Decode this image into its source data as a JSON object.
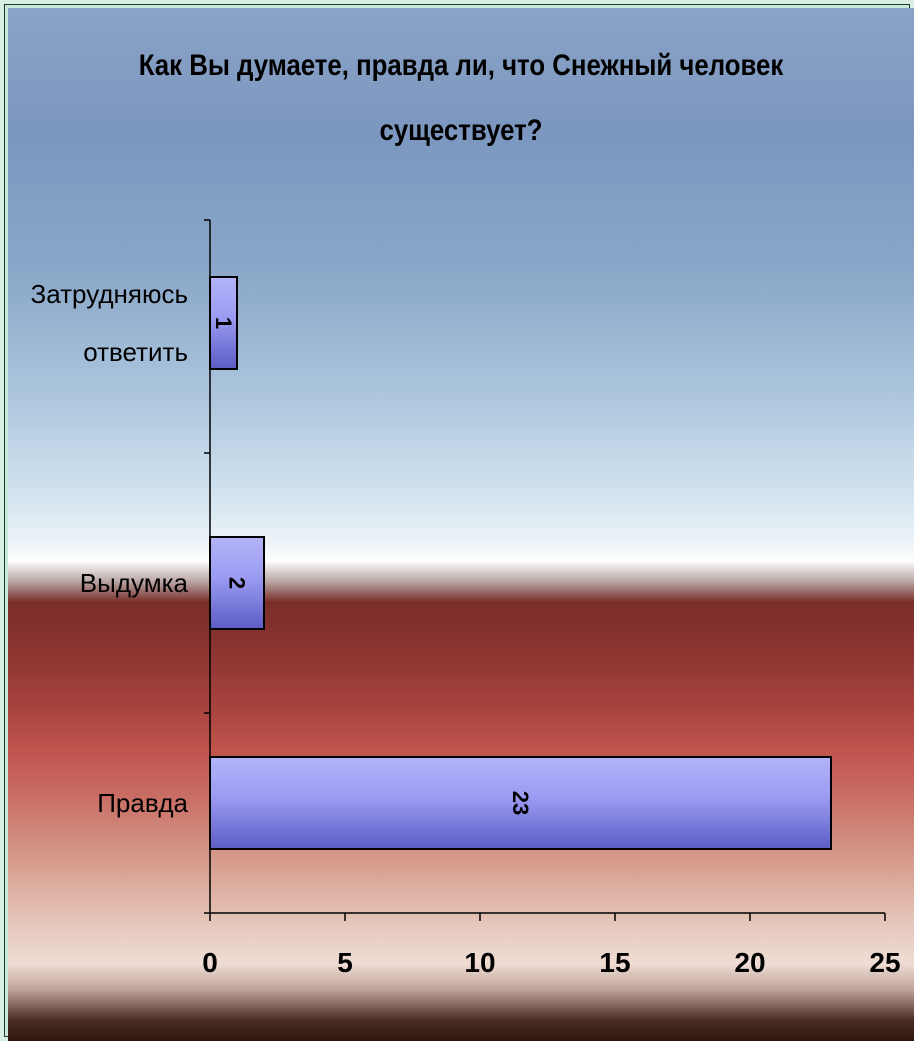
{
  "chart_data": {
    "type": "bar",
    "orientation": "horizontal",
    "title": "Как Вы думаете, правда ли, что Снежный человек существует?",
    "title_lines": [
      "Как Вы думаете, правда ли, что Снежный человек",
      "существует?"
    ],
    "categories": [
      "Затрудняюсь ответить",
      "Выдумка",
      "Правда"
    ],
    "category_label_lines": [
      [
        "Затрудняюсь",
        "ответить"
      ],
      [
        "Выдумка"
      ],
      [
        "Правда"
      ]
    ],
    "values": [
      1,
      2,
      23
    ],
    "data_labels": [
      "1",
      "2",
      "23"
    ],
    "xlim": [
      0,
      25
    ],
    "x_ticks": [
      0,
      5,
      10,
      15,
      20,
      25
    ],
    "x_tick_labels": [
      "0",
      "5",
      "10",
      "15",
      "20",
      "25"
    ],
    "xlabel": "",
    "ylabel": "",
    "grid": false,
    "legend": "none",
    "colors": {
      "bar_fill_light": "#9c9cf4",
      "bar_fill_dark": "#5b5bc0",
      "bar_stroke": "#000000",
      "axis": "#000000"
    }
  }
}
